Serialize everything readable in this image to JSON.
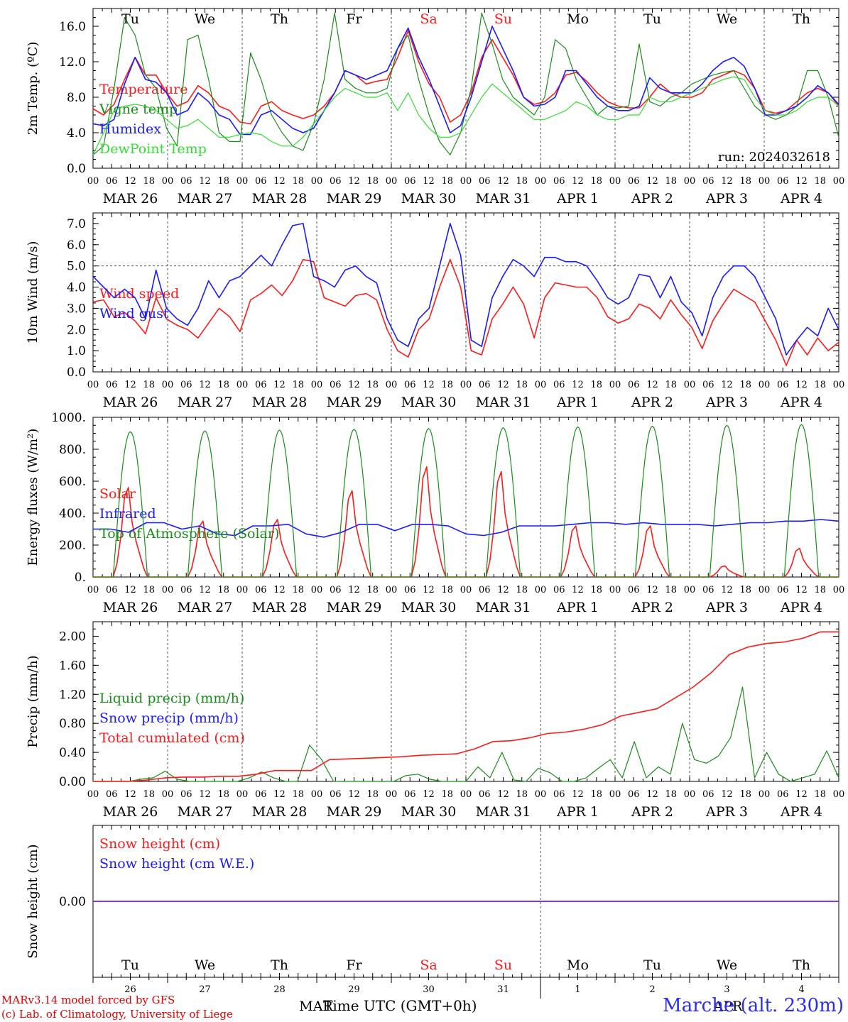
{
  "colors": {
    "red": "#ff1a1a",
    "blue": "#1a1aff",
    "green": "#1a8c1a",
    "lightgreen": "#33dd33",
    "purple": "#8a2be2",
    "grid": "#555555",
    "weekend": "#ff1a1a"
  },
  "x_axis": {
    "hour_ticks": [
      "00",
      "06",
      "12",
      "18"
    ],
    "date_labels": [
      "MAR 26",
      "MAR 27",
      "MAR 28",
      "MAR 29",
      "MAR 30",
      "MAR 31",
      "APR  1",
      "APR  2",
      "APR  3",
      "APR  4"
    ],
    "weekdays": [
      "Tu",
      "We",
      "Th",
      "Fr",
      "Sa",
      "Su",
      "Mo",
      "Tu",
      "We",
      "Th"
    ],
    "weekend_days": [
      "Sa",
      "Su"
    ],
    "bottom_day_numbers": [
      "26",
      "27",
      "28",
      "29",
      "30",
      "31",
      "1",
      "2",
      "3",
      "4"
    ],
    "bottom_month_labels": [
      "MAR",
      "APR"
    ],
    "title": "Time UTC (GMT+0h)"
  },
  "footer": {
    "credit_line1": "MARv3.14 model forced by GFS",
    "credit_line2": "(c) Lab. of Climatology, University of Liege",
    "station": "Marche (alt. 230m)"
  },
  "chart_data": [
    {
      "type": "line",
      "ylabel": "2m Temp. (ºC)",
      "yticks": [
        "0.0",
        "4.0",
        "8.0",
        "12.0",
        "16.0"
      ],
      "ylim": [
        0,
        18
      ],
      "annotation": "run: 2024032618",
      "series": [
        {
          "name": "Temperature",
          "color": "red",
          "values": [
            6.7,
            6.0,
            7.2,
            10.0,
            12.5,
            10.5,
            10.5,
            8.5,
            7.0,
            7.5,
            9.3,
            8.5,
            7.0,
            6.5,
            5.2,
            5.0,
            7.0,
            7.5,
            6.5,
            6.0,
            5.6,
            6.0,
            7.0,
            8.5,
            11.0,
            10.5,
            9.5,
            9.8,
            10.0,
            12.5,
            15.5,
            12.0,
            9.5,
            8.0,
            5.2,
            6.0,
            8.5,
            12.5,
            14.5,
            12.5,
            10.5,
            8.0,
            7.2,
            7.5,
            8.5,
            10.5,
            10.8,
            9.8,
            8.5,
            7.5,
            7.0,
            6.8,
            6.8,
            8.0,
            9.5,
            8.5,
            8.0,
            8.0,
            8.5,
            10.0,
            10.5,
            11.0,
            10.5,
            9.0,
            6.5,
            6.2,
            6.5,
            7.5,
            8.5,
            9.0,
            8.5,
            7.0
          ]
        },
        {
          "name": "Vigne temp",
          "color": "green",
          "values": [
            1.5,
            2.5,
            9.0,
            17.0,
            15.0,
            10.5,
            9.0,
            4.5,
            2.5,
            14.5,
            15.0,
            10.0,
            4.0,
            3.0,
            3.0,
            13.0,
            10.0,
            6.0,
            4.0,
            2.5,
            2.0,
            5.0,
            10.0,
            17.5,
            10.0,
            9.0,
            8.5,
            8.5,
            9.0,
            13.5,
            15.0,
            10.0,
            6.0,
            3.0,
            1.5,
            4.0,
            9.0,
            17.5,
            14.0,
            10.0,
            8.0,
            7.0,
            6.0,
            8.0,
            14.5,
            13.5,
            10.0,
            8.0,
            6.0,
            7.0,
            6.8,
            7.0,
            14.0,
            7.5,
            7.0,
            8.0,
            8.5,
            9.5,
            10.0,
            10.5,
            10.8,
            11.0,
            9.0,
            7.0,
            6.0,
            5.5,
            6.0,
            7.0,
            11.0,
            11.0,
            8.0,
            3.5
          ]
        },
        {
          "name": "Humidex",
          "color": "blue",
          "values": [
            5.0,
            4.8,
            5.5,
            9.5,
            12.5,
            10.0,
            9.7,
            8.5,
            6.0,
            6.5,
            8.5,
            7.5,
            6.0,
            5.5,
            3.8,
            3.8,
            6.0,
            6.5,
            5.5,
            4.5,
            4.0,
            4.5,
            6.5,
            8.5,
            11.0,
            10.5,
            10.0,
            10.5,
            11.0,
            13.5,
            15.8,
            12.5,
            10.0,
            7.0,
            4.0,
            4.8,
            8.0,
            12.0,
            16.0,
            13.5,
            11.0,
            8.0,
            7.0,
            7.2,
            8.0,
            11.0,
            11.0,
            9.5,
            8.0,
            7.0,
            6.5,
            6.5,
            7.0,
            10.2,
            9.0,
            8.5,
            8.5,
            8.5,
            9.5,
            11.0,
            12.0,
            12.5,
            11.5,
            9.0,
            6.0,
            6.0,
            6.5,
            7.0,
            8.0,
            9.3,
            8.5,
            7.2
          ]
        },
        {
          "name": "DewPoint Temp",
          "color": "lightgreen",
          "values": [
            1.5,
            4.0,
            6.5,
            7.0,
            7.2,
            7.0,
            6.5,
            5.5,
            4.5,
            4.8,
            5.5,
            4.5,
            3.5,
            3.5,
            3.8,
            4.0,
            3.8,
            3.0,
            2.5,
            2.5,
            3.5,
            5.0,
            6.5,
            8.0,
            9.0,
            8.5,
            8.0,
            8.0,
            8.5,
            6.5,
            8.5,
            6.0,
            4.5,
            3.5,
            3.5,
            4.0,
            6.0,
            8.0,
            9.5,
            8.5,
            7.5,
            6.5,
            5.5,
            5.5,
            6.0,
            6.5,
            7.5,
            7.0,
            6.0,
            5.5,
            5.5,
            6.0,
            6.0,
            8.0,
            7.5,
            7.5,
            8.0,
            8.5,
            9.0,
            9.5,
            10.0,
            10.3,
            10.0,
            8.0,
            6.5,
            6.0,
            6.0,
            6.5,
            7.5,
            8.0,
            8.0,
            7.0
          ]
        }
      ]
    },
    {
      "type": "line",
      "ylabel": "10m Wind (m/s)",
      "yticks": [
        "0.0",
        "1.0",
        "2.0",
        "3.0",
        "4.0",
        "5.0",
        "6.0",
        "7.0"
      ],
      "ylim": [
        0,
        7.5
      ],
      "reference_line": 5.0,
      "series": [
        {
          "name": "Wind speed",
          "color": "red",
          "values": [
            3.3,
            3.4,
            2.6,
            2.8,
            2.4,
            1.8,
            3.5,
            2.5,
            2.2,
            2.0,
            1.6,
            2.3,
            3.0,
            2.6,
            1.9,
            3.4,
            3.7,
            4.1,
            3.6,
            4.3,
            5.3,
            5.2,
            3.5,
            3.3,
            3.1,
            3.6,
            3.7,
            3.4,
            2.0,
            1.0,
            0.7,
            2.0,
            2.5,
            4.0,
            5.3,
            4.0,
            1.0,
            0.8,
            2.5,
            3.2,
            4.0,
            3.2,
            1.6,
            3.5,
            4.2,
            4.1,
            4.0,
            4.0,
            3.5,
            2.6,
            2.3,
            2.5,
            3.2,
            3.0,
            2.5,
            3.4,
            2.7,
            2.1,
            1.1,
            2.4,
            3.2,
            3.9,
            3.6,
            3.3,
            2.4,
            1.5,
            0.3,
            1.5,
            0.8,
            1.6,
            1.0,
            1.4
          ]
        },
        {
          "name": "Wind gust",
          "color": "blue",
          "values": [
            4.5,
            4.0,
            3.5,
            3.9,
            3.5,
            2.5,
            4.8,
            3.0,
            2.5,
            2.2,
            3.0,
            4.3,
            3.5,
            4.3,
            4.5,
            5.0,
            5.5,
            5.0,
            6.0,
            6.9,
            7.0,
            4.5,
            4.3,
            4.0,
            4.8,
            5.0,
            4.5,
            4.2,
            2.5,
            1.5,
            1.2,
            2.5,
            3.0,
            5.0,
            7.0,
            5.5,
            1.5,
            1.2,
            3.5,
            4.5,
            5.3,
            5.0,
            4.5,
            5.4,
            5.4,
            5.2,
            5.2,
            5.0,
            4.3,
            3.5,
            3.2,
            3.5,
            4.6,
            4.5,
            3.5,
            4.5,
            3.3,
            2.8,
            1.7,
            3.5,
            4.5,
            5.0,
            5.0,
            4.5,
            3.5,
            2.5,
            0.8,
            1.5,
            2.1,
            1.7,
            3.0,
            2.0
          ]
        }
      ]
    },
    {
      "type": "line",
      "ylabel": "Energy fluxes (W/m²)",
      "yticks": [
        "0.",
        "200.",
        "400.",
        "600.",
        "800.",
        "1000."
      ],
      "ylim": [
        0,
        1000
      ],
      "series": [
        {
          "name": "Solar",
          "color": "red",
          "peaks": [
            560,
            350,
            360,
            540,
            690,
            660,
            320,
            320,
            70,
            180
          ]
        },
        {
          "name": "Infrared",
          "color": "blue",
          "values": [
            300,
            300,
            280,
            340,
            340,
            300,
            320,
            270,
            260,
            320,
            320,
            330,
            270,
            250,
            280,
            330,
            330,
            290,
            330,
            330,
            320,
            270,
            260,
            280,
            320,
            320,
            320,
            330,
            340,
            340,
            330,
            340,
            330,
            330,
            330,
            320,
            330,
            340,
            340,
            350,
            350,
            360,
            350
          ]
        },
        {
          "name": "Top of Atmosphere (Solar)",
          "color": "green",
          "peaks": [
            910,
            915,
            920,
            925,
            930,
            935,
            940,
            945,
            950,
            955
          ]
        }
      ]
    },
    {
      "type": "line",
      "ylabel": "Precip (mm/h)",
      "yticks": [
        "0.00",
        "0.40",
        "0.80",
        "1.20",
        "1.60",
        "2.00"
      ],
      "ylim": [
        0,
        2.2
      ],
      "series": [
        {
          "name": "Liquid precip (mm/h)",
          "color": "green",
          "values": [
            0,
            0,
            0,
            0,
            0.03,
            0.05,
            0.14,
            0.03,
            0,
            0,
            0,
            0,
            0,
            0.05,
            0.13,
            0.05,
            0,
            0,
            0.5,
            0.3,
            0,
            0,
            0,
            0,
            0,
            0,
            0.08,
            0.1,
            0.03,
            0,
            0,
            0,
            0.2,
            0.05,
            0.4,
            0.02,
            0,
            0.18,
            0.12,
            0,
            0,
            0.05,
            0.18,
            0.3,
            0.05,
            0.55,
            0.05,
            0.2,
            0.1,
            0.8,
            0.3,
            0.25,
            0.35,
            0.6,
            1.3,
            0.05,
            0.4,
            0.1,
            0,
            0.05,
            0.1,
            0.42,
            0.05
          ]
        },
        {
          "name": "Snow precip (mm/h)",
          "color": "blue",
          "values": []
        },
        {
          "name": "Total cumulated (cm)",
          "color": "red",
          "values": [
            0,
            0,
            0,
            0.02,
            0.05,
            0.06,
            0.06,
            0.07,
            0.07,
            0.1,
            0.15,
            0.15,
            0.15,
            0.3,
            0.31,
            0.32,
            0.33,
            0.34,
            0.36,
            0.37,
            0.38,
            0.45,
            0.55,
            0.56,
            0.6,
            0.66,
            0.68,
            0.72,
            0.78,
            0.9,
            0.95,
            1.0,
            1.15,
            1.3,
            1.5,
            1.75,
            1.85,
            1.9,
            1.92,
            1.97,
            2.06,
            2.06
          ]
        }
      ]
    },
    {
      "type": "line",
      "ylabel": "Snow height (cm)",
      "yticks": [
        "0.00"
      ],
      "ylim": [
        -1,
        1
      ],
      "series": [
        {
          "name": "Snow height (cm)",
          "color": "red",
          "values": [
            0,
            0
          ]
        },
        {
          "name": "Snow height (cm W.E.)",
          "color": "blue",
          "values": [
            0,
            0
          ]
        }
      ]
    }
  ]
}
